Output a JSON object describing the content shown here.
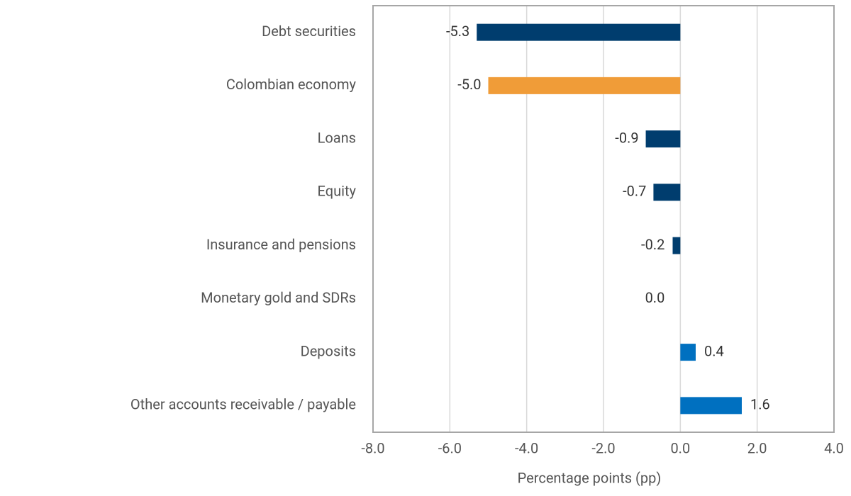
{
  "chart_data": {
    "type": "hbar",
    "categories": [
      "Debt securities",
      "Colombian economy",
      "Loans",
      "Equity",
      "Insurance and pensions",
      "Monetary gold and SDRs",
      "Deposits",
      "Other accounts receivable / payable"
    ],
    "values": [
      -5.3,
      -5.0,
      -0.9,
      -0.7,
      -0.2,
      0.0,
      0.4,
      1.6
    ],
    "value_labels": [
      "-5.3",
      "-5.0",
      "-0.9",
      "-0.7",
      "-0.2",
      "0.0",
      "0.4",
      "1.6"
    ],
    "colors": [
      "#003d6e",
      "#f09c38",
      "#003d6e",
      "#003d6e",
      "#003d6e",
      "#003d6e",
      "#0070c0",
      "#0070c0"
    ],
    "xlabel": "Percentage points (pp)",
    "xlim": [
      -8,
      4
    ],
    "xticks": [
      {
        "value": -8,
        "label": "-8.0"
      },
      {
        "value": -6,
        "label": "-6.0"
      },
      {
        "value": -4,
        "label": "-4.0"
      },
      {
        "value": -2,
        "label": "-2.0"
      },
      {
        "value": 0,
        "label": "0.0"
      },
      {
        "value": 2,
        "label": "2.0"
      },
      {
        "value": 4,
        "label": "4.0"
      }
    ],
    "grid": true
  }
}
